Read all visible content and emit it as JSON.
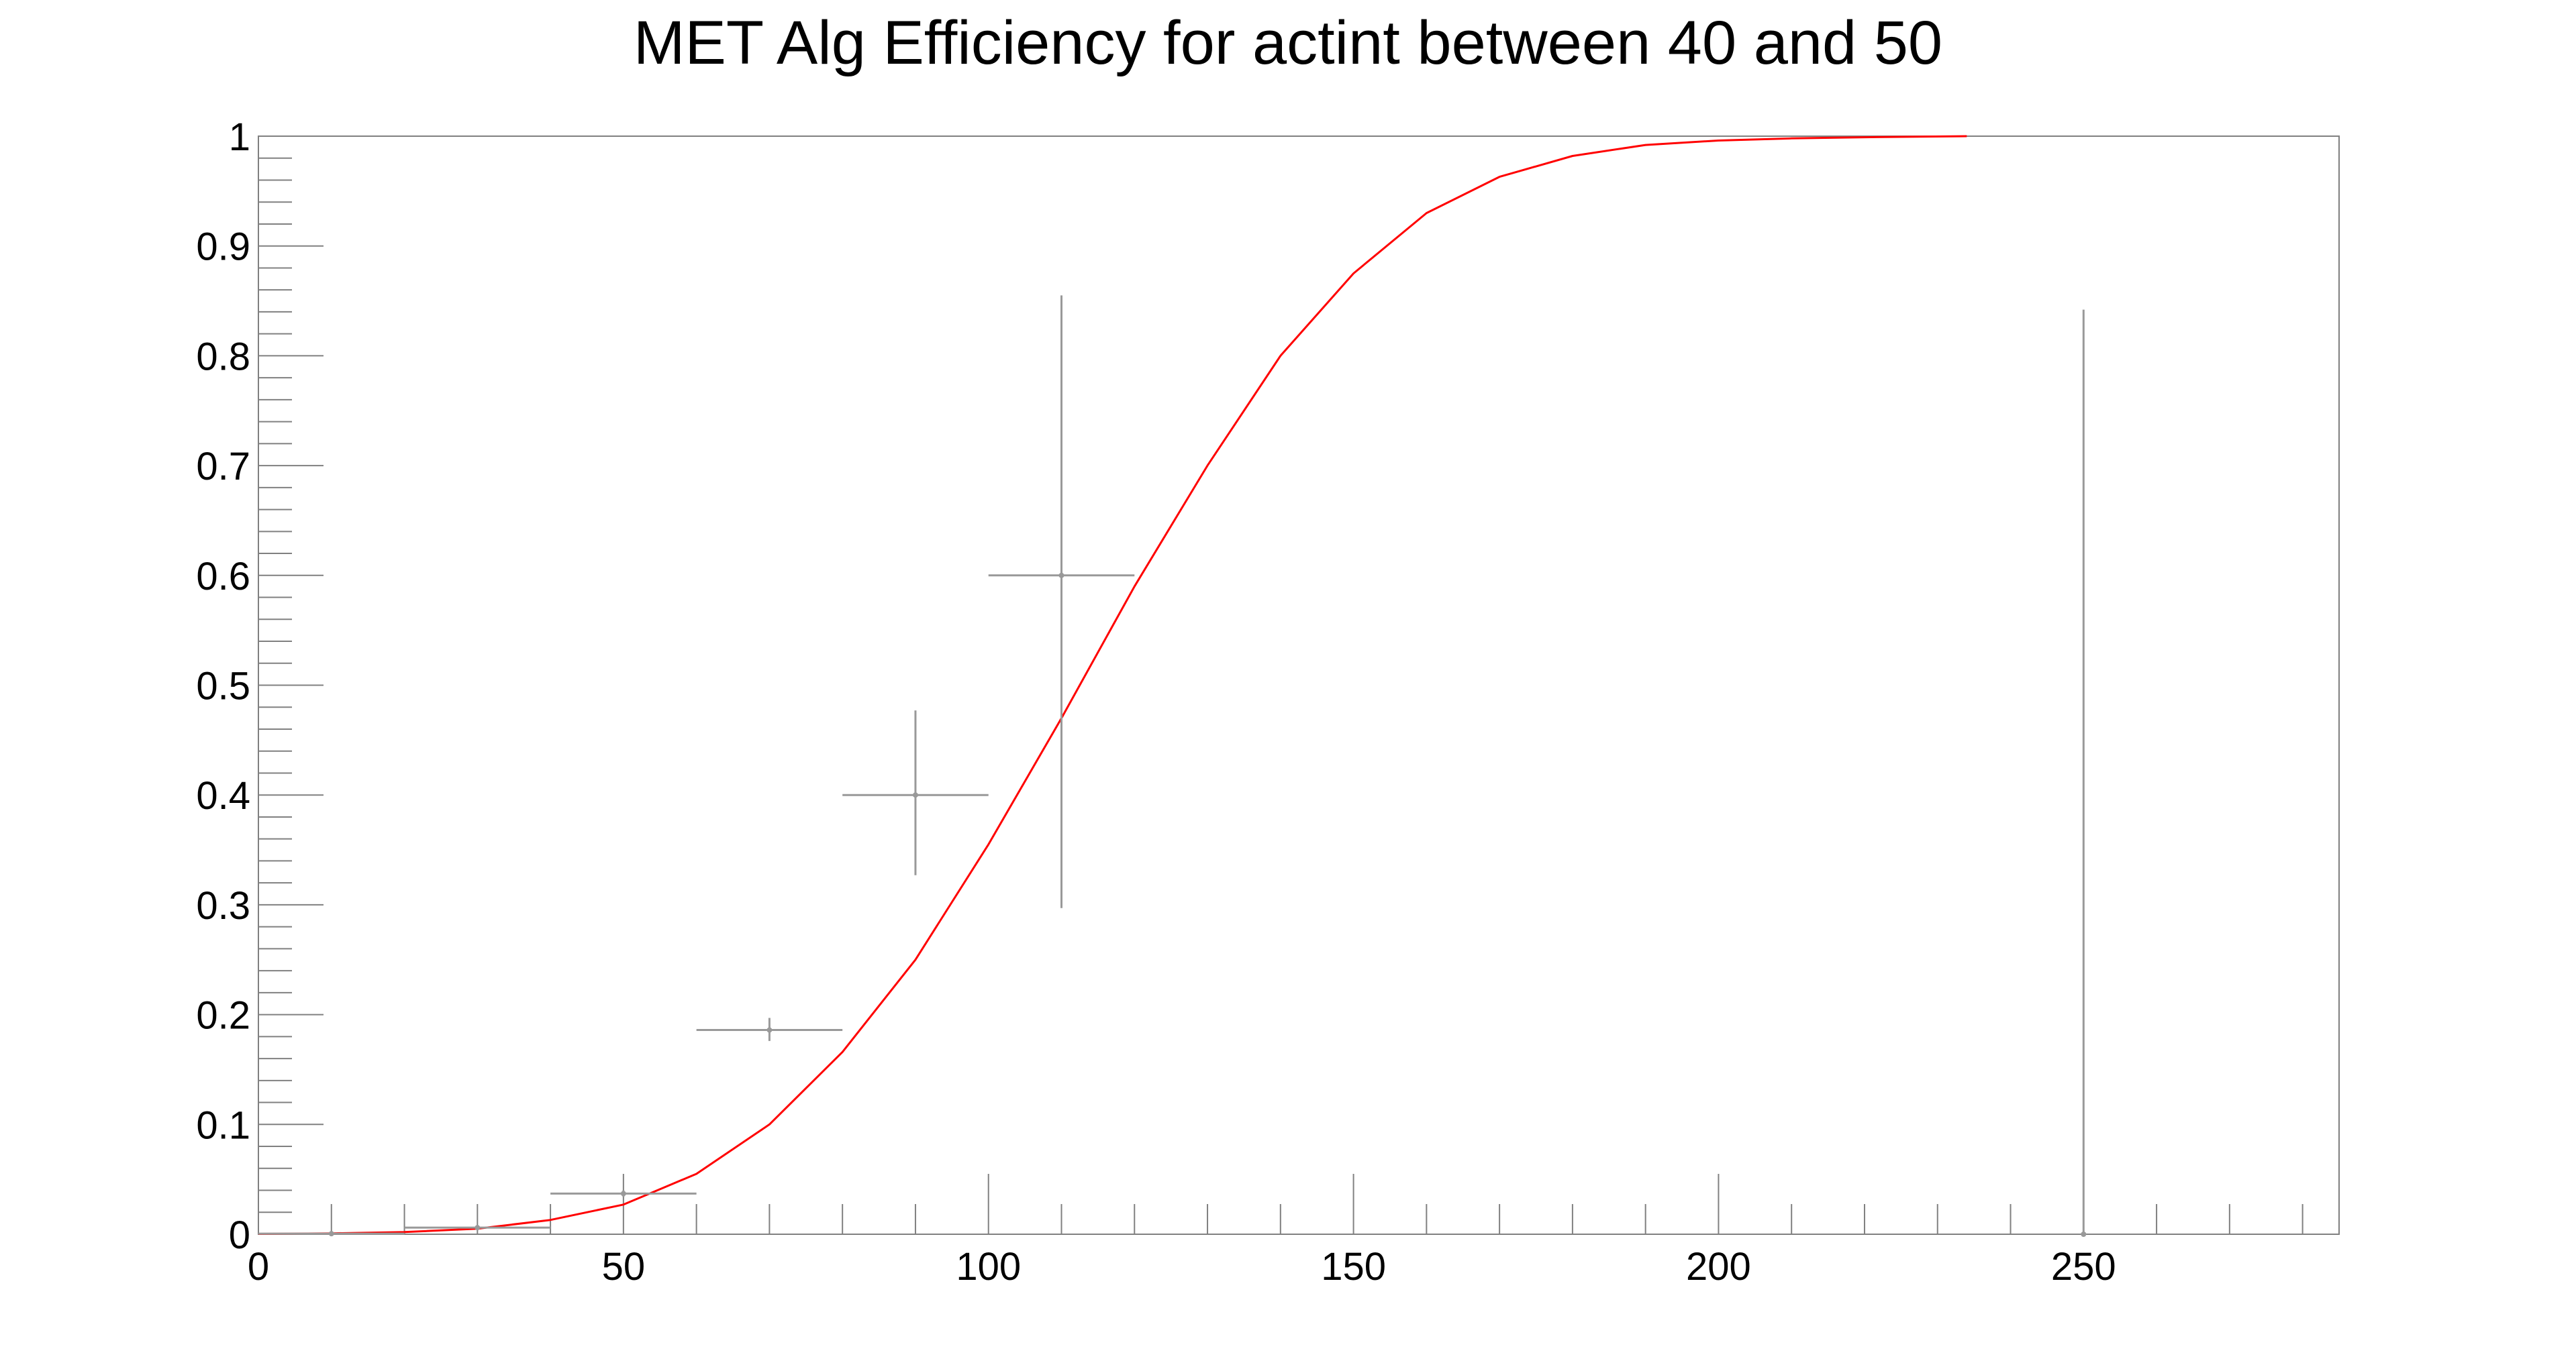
{
  "chart_data": {
    "type": "scatter",
    "title": "MET Alg Efficiency for actint between 40 and 50",
    "xlabel": "",
    "ylabel": "",
    "xlim": [
      0,
      285
    ],
    "ylim": [
      0,
      1
    ],
    "x_major_ticks": [
      0,
      50,
      100,
      150,
      200,
      250
    ],
    "x_tick_labels": [
      "0",
      "50",
      "100",
      "150",
      "200",
      "250"
    ],
    "x_minor_step": 10,
    "y_major_ticks": [
      0,
      0.1,
      0.2,
      0.3,
      0.4,
      0.5,
      0.6,
      0.7,
      0.8,
      0.9,
      1
    ],
    "y_tick_labels": [
      "0",
      "0.1",
      "0.2",
      "0.3",
      "0.4",
      "0.5",
      "0.6",
      "0.7",
      "0.8",
      "0.9",
      "1"
    ],
    "y_minor_step": 0.02,
    "grid": false,
    "series": [
      {
        "type": "errorbar",
        "color": "#999999",
        "points": [
          {
            "x": 10,
            "xerr": 10,
            "y": 0.0005,
            "yerr_low": 0.0005,
            "yerr_high": 0.001
          },
          {
            "x": 30,
            "xerr": 10,
            "y": 0.006,
            "yerr_low": 0.002,
            "yerr_high": 0.002
          },
          {
            "x": 50,
            "xerr": 10,
            "y": 0.037,
            "yerr_low": 0.003,
            "yerr_high": 0.003
          },
          {
            "x": 70,
            "xerr": 10,
            "y": 0.186,
            "yerr_low": 0.01,
            "yerr_high": 0.011
          },
          {
            "x": 90,
            "xerr": 10,
            "y": 0.4,
            "yerr_low": 0.073,
            "yerr_high": 0.077
          },
          {
            "x": 110,
            "xerr": 10,
            "y": 0.6,
            "yerr_low": 0.303,
            "yerr_high": 0.255
          },
          {
            "x": 250,
            "xerr": 0,
            "y": 0.0,
            "yerr_low": 0.0,
            "yerr_high": 0.842
          }
        ]
      },
      {
        "type": "fit-curve",
        "color": "#ff0000",
        "x": [
          0,
          10,
          20,
          30,
          40,
          50,
          60,
          70,
          80,
          90,
          100,
          110,
          120,
          130,
          140,
          150,
          160,
          170,
          180,
          190,
          200,
          210,
          220,
          234
        ],
        "y": [
          0.0003,
          0.0008,
          0.002,
          0.005,
          0.013,
          0.027,
          0.055,
          0.1,
          0.166,
          0.25,
          0.355,
          0.47,
          0.59,
          0.7,
          0.8,
          0.875,
          0.93,
          0.963,
          0.982,
          0.992,
          0.996,
          0.998,
          0.999,
          1.0
        ]
      }
    ]
  }
}
